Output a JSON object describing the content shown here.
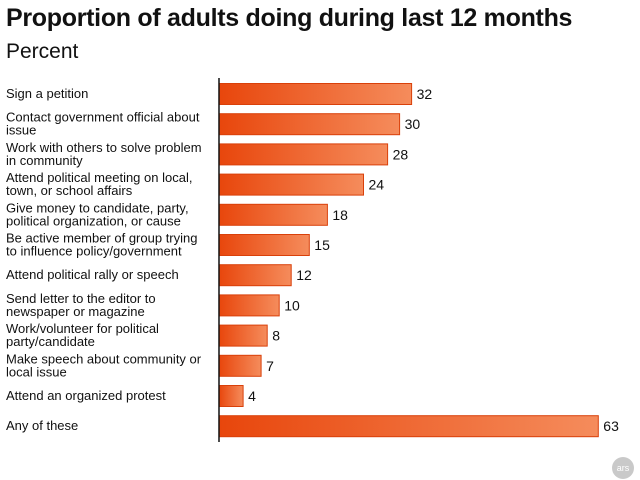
{
  "chart_data": {
    "type": "bar",
    "orientation": "horizontal",
    "title": "Proportion of adults doing during last 12 months",
    "subtitle": "Percent",
    "categories": [
      [
        "Sign a petition"
      ],
      [
        "Contact government official about",
        "issue"
      ],
      [
        "Work with others to solve problem",
        "in community"
      ],
      [
        "Attend political meeting on local,",
        "town, or school affairs"
      ],
      [
        "Give money to candidate, party,",
        "political organization, or cause"
      ],
      [
        "Be active member of group trying",
        "to influence policy/government"
      ],
      [
        "Attend political rally or speech"
      ],
      [
        "Send letter to the editor to",
        "newspaper or magazine"
      ],
      [
        "Work/volunteer for political",
        "party/candidate"
      ],
      [
        "Make speech about community or",
        "local issue"
      ],
      [
        "Attend an organized protest"
      ],
      [
        "Any of these"
      ]
    ],
    "values": [
      32,
      30,
      28,
      24,
      18,
      15,
      12,
      10,
      8,
      7,
      4,
      63
    ],
    "xlim": [
      0,
      63
    ],
    "grid": false,
    "legend": "none",
    "colors": {
      "bar_start": "#e8460c",
      "bar_end": "#f58c5c",
      "bar_stroke": "#d9400a",
      "axis": "#111111"
    }
  },
  "badge": {
    "text": "ars"
  }
}
